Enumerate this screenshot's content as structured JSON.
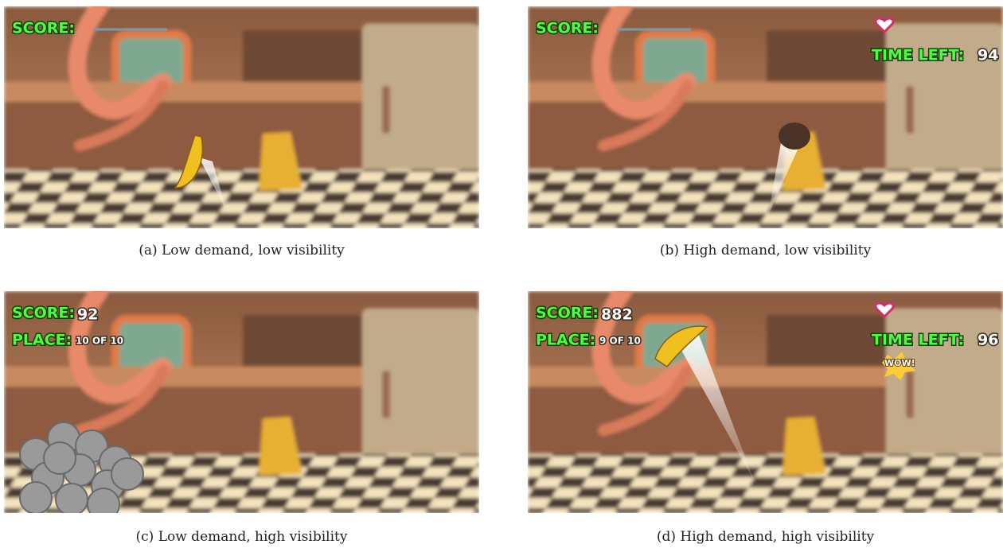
{
  "panels": [
    {
      "caption": "(a) Low demand, low visibility",
      "hud": {
        "score_label": "SCORE:"
      }
    },
    {
      "caption": "(b) High demand, low visibility",
      "hud": {
        "score_label": "SCORE:",
        "time_label": "TIME LEFT:",
        "time_value": 94
      }
    },
    {
      "caption": "(c) Low demand, high visibility",
      "hud": {
        "score_label": "SCORE:",
        "score_value": 92,
        "place_label": "PLACE:",
        "place_value": "10 OF 10"
      }
    },
    {
      "caption": "(d) High demand, high visibility",
      "hud": {
        "score_label": "SCORE:",
        "score_value": 882,
        "place_label": "PLACE:",
        "place_value": "9 OF 10",
        "time_label": "TIME LEFT:",
        "time_value": 96,
        "popup": "WOW!"
      }
    }
  ]
}
